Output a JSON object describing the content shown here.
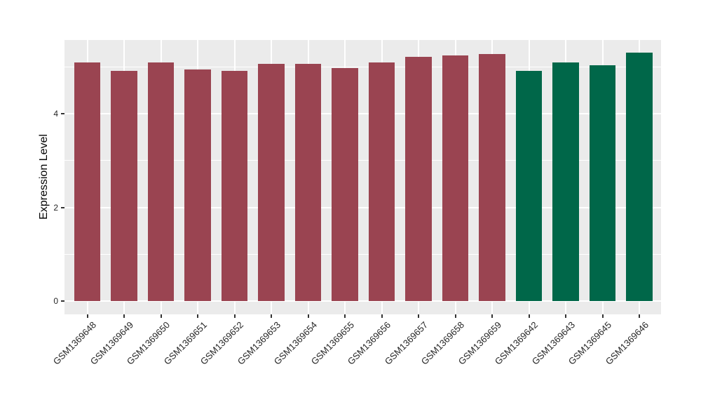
{
  "figure": {
    "background": "#FFFFFF",
    "panel_background": "#EBEBEB",
    "grid_color": "#FFFFFF",
    "tick_color": "#333333",
    "axis_text_color": "#262626"
  },
  "chart_data": {
    "type": "bar",
    "title": "",
    "xlabel": "",
    "ylabel": "Expression Level",
    "categories": [
      "GSM1369648",
      "GSM1369649",
      "GSM1369650",
      "GSM1369651",
      "GSM1369652",
      "GSM1369653",
      "GSM1369654",
      "GSM1369655",
      "GSM1369656",
      "GSM1369657",
      "GSM1369658",
      "GSM1369659",
      "GSM1369642",
      "GSM1369643",
      "GSM1369645",
      "GSM1369646"
    ],
    "values": [
      5.09,
      4.91,
      5.1,
      4.95,
      4.92,
      5.07,
      5.06,
      4.98,
      5.09,
      5.21,
      5.24,
      5.28,
      4.92,
      5.1,
      5.04,
      5.31
    ],
    "groups": [
      "A",
      "A",
      "A",
      "A",
      "A",
      "A",
      "A",
      "A",
      "A",
      "A",
      "A",
      "A",
      "B",
      "B",
      "B",
      "B"
    ],
    "group_colors": {
      "A": "#9A4451",
      "B": "#006749"
    },
    "ytick_labels": [
      "0",
      "2",
      "4"
    ],
    "yticks": [
      0,
      2,
      4
    ],
    "minor_yticks": [
      1,
      3,
      5
    ],
    "ylim": [
      -0.28,
      5.58
    ],
    "grid": true,
    "legend_position": "none"
  }
}
